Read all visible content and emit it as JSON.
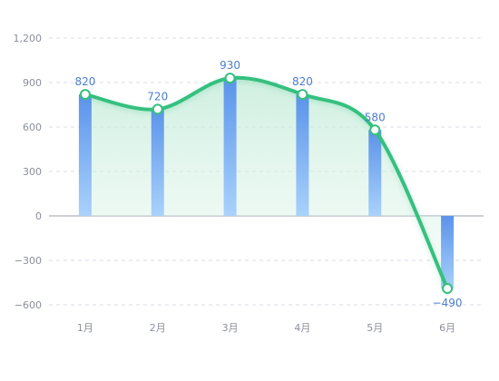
{
  "chart_data": {
    "type": "bar",
    "categories": [
      "1月",
      "2月",
      "3月",
      "4月",
      "5月",
      "6月"
    ],
    "values": [
      820,
      720,
      930,
      820,
      580,
      -490
    ],
    "y_ticks": [
      "1,200",
      "900",
      "600",
      "300",
      "0",
      "−300",
      "−600"
    ],
    "y_tick_values": [
      1200,
      900,
      600,
      300,
      0,
      -300,
      -600
    ],
    "data_labels": [
      "820",
      "720",
      "930",
      "820",
      "580",
      "−490"
    ],
    "ylim": [
      -600,
      1200
    ],
    "grid": true,
    "overlay": {
      "type": "line",
      "smooth": true,
      "area_fill": true,
      "values": [
        820,
        720,
        930,
        820,
        580,
        -490
      ]
    },
    "colors": {
      "bar_top": "#5b93ea",
      "bar_bottom": "#a9d2fb",
      "line": "#34c07f",
      "area_top": "#bfead6",
      "grid": "#d8dde6",
      "zero_line": "#9aa0aa",
      "label": "#4b7fcf",
      "axis_text": "#8a8f99"
    }
  }
}
